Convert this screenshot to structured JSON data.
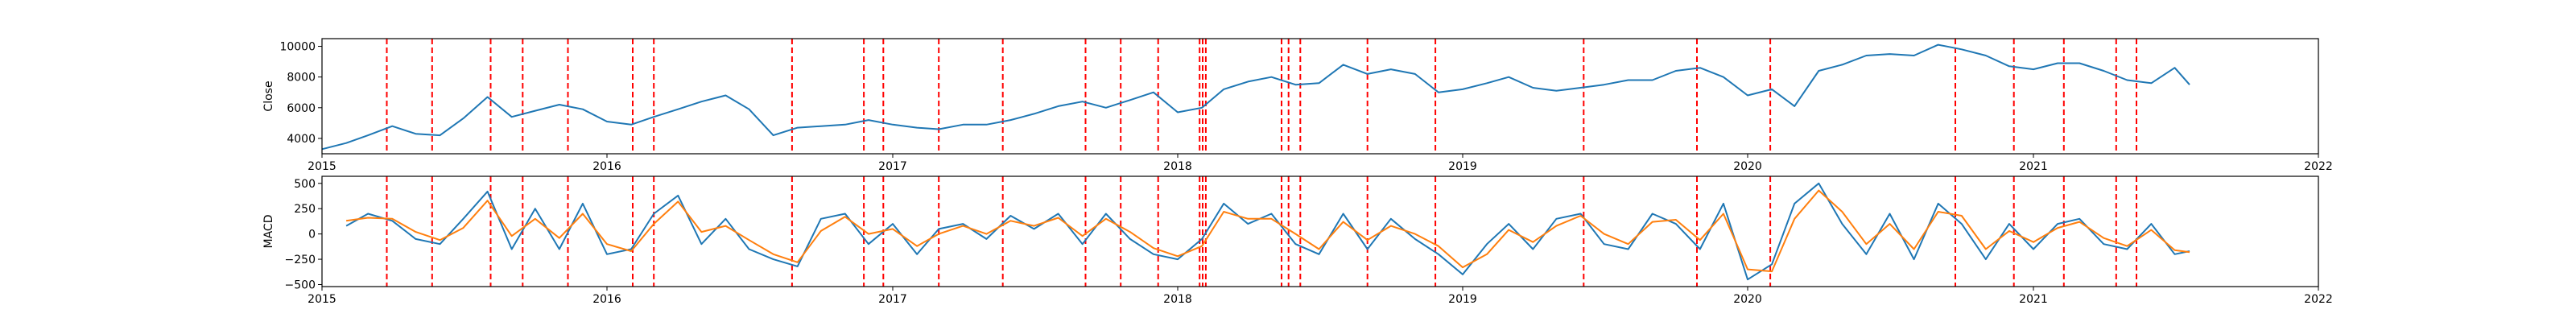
{
  "chart_data": [
    {
      "type": "line",
      "ylabel": "Close",
      "xlim": [
        "2015-01-01",
        "2022-01-01"
      ],
      "ylim": [
        3000,
        10500
      ],
      "x_ticks": [
        "2015",
        "2016",
        "2017",
        "2018",
        "2019",
        "2020",
        "2021",
        "2022"
      ],
      "y_ticks": [
        "4000",
        "6000",
        "8000",
        "10000"
      ],
      "y_tick_values": [
        4000,
        6000,
        8000,
        10000
      ],
      "grid": false,
      "series": [
        {
          "color": "#1f77b4",
          "x": [
            "2015-01-01",
            "2015-02-01",
            "2015-03-01",
            "2015-04-01",
            "2015-05-01",
            "2015-06-01",
            "2015-07-01",
            "2015-08-01",
            "2015-09-01",
            "2015-10-01",
            "2015-11-01",
            "2015-12-01",
            "2016-01-01",
            "2016-02-01",
            "2016-03-01",
            "2016-04-01",
            "2016-05-01",
            "2016-06-01",
            "2016-07-01",
            "2016-08-01",
            "2016-09-01",
            "2016-10-01",
            "2016-11-01",
            "2016-12-01",
            "2017-01-01",
            "2017-02-01",
            "2017-03-01",
            "2017-04-01",
            "2017-05-01",
            "2017-06-01",
            "2017-07-01",
            "2017-08-01",
            "2017-09-01",
            "2017-10-01",
            "2017-11-01",
            "2017-12-01",
            "2018-01-01",
            "2018-02-01",
            "2018-03-01",
            "2018-04-01",
            "2018-05-01",
            "2018-06-01",
            "2018-07-01",
            "2018-08-01",
            "2018-09-01",
            "2018-10-01",
            "2018-11-01",
            "2018-12-01",
            "2019-01-01",
            "2019-02-01",
            "2019-03-01",
            "2019-04-01",
            "2019-05-01",
            "2019-06-01",
            "2019-07-01",
            "2019-08-01",
            "2019-09-01",
            "2019-10-01",
            "2019-11-01",
            "2019-12-01",
            "2020-01-01",
            "2020-02-01",
            "2020-03-01",
            "2020-04-01",
            "2020-05-01",
            "2020-06-01",
            "2020-07-01",
            "2020-08-01",
            "2020-09-01",
            "2020-10-01",
            "2020-11-01",
            "2020-12-01",
            "2021-01-01",
            "2021-02-01",
            "2021-03-01",
            "2021-04-01",
            "2021-05-01",
            "2021-06-01",
            "2021-07-01",
            "2021-07-20"
          ],
          "values": [
            3300,
            3700,
            4200,
            4800,
            4300,
            4200,
            5300,
            6700,
            5400,
            5800,
            6200,
            5900,
            5100,
            4900,
            5400,
            5900,
            6400,
            6800,
            5900,
            4200,
            4700,
            4800,
            4900,
            5200,
            4900,
            4700,
            4600,
            4900,
            4900,
            5200,
            5600,
            6100,
            6400,
            6000,
            6500,
            7000,
            5700,
            6000,
            7200,
            7700,
            8000,
            7500,
            7600,
            8800,
            8200,
            8500,
            8200,
            7000,
            7200,
            7600,
            8000,
            7300,
            7100,
            7300,
            7500,
            7800,
            7800,
            8400,
            8600,
            8000,
            6800,
            7200,
            6100,
            8400,
            8800,
            9400,
            9500,
            9400,
            10100,
            9800,
            9400,
            8700,
            8500,
            8900,
            8900,
            8400,
            7800,
            7600,
            8600,
            7500
          ]
        }
      ]
    },
    {
      "type": "line",
      "ylabel": "MACD",
      "xlim": [
        "2015-01-01",
        "2022-01-01"
      ],
      "ylim": [
        -520,
        570
      ],
      "x_ticks": [
        "2015",
        "2016",
        "2017",
        "2018",
        "2019",
        "2020",
        "2021",
        "2022"
      ],
      "y_ticks": [
        "500",
        "250",
        "0",
        "−250",
        "−500"
      ],
      "y_tick_values": [
        500,
        250,
        0,
        -250,
        -500
      ],
      "grid": false,
      "series": [
        {
          "color": "#1f77b4",
          "x": [
            "2015-02-01",
            "2015-03-01",
            "2015-04-01",
            "2015-05-01",
            "2015-06-01",
            "2015-07-01",
            "2015-08-01",
            "2015-09-01",
            "2015-10-01",
            "2015-11-01",
            "2015-12-01",
            "2016-01-01",
            "2016-02-01",
            "2016-03-01",
            "2016-04-01",
            "2016-05-01",
            "2016-06-01",
            "2016-07-01",
            "2016-08-01",
            "2016-09-01",
            "2016-10-01",
            "2016-11-01",
            "2016-12-01",
            "2017-01-01",
            "2017-02-01",
            "2017-03-01",
            "2017-04-01",
            "2017-05-01",
            "2017-06-01",
            "2017-07-01",
            "2017-08-01",
            "2017-09-01",
            "2017-10-01",
            "2017-11-01",
            "2017-12-01",
            "2018-01-01",
            "2018-02-01",
            "2018-03-01",
            "2018-04-01",
            "2018-05-01",
            "2018-06-01",
            "2018-07-01",
            "2018-08-01",
            "2018-09-01",
            "2018-10-01",
            "2018-11-01",
            "2018-12-01",
            "2019-01-01",
            "2019-02-01",
            "2019-03-01",
            "2019-04-01",
            "2019-05-01",
            "2019-06-01",
            "2019-07-01",
            "2019-08-01",
            "2019-09-01",
            "2019-10-01",
            "2019-11-01",
            "2019-12-01",
            "2020-01-01",
            "2020-02-01",
            "2020-03-01",
            "2020-04-01",
            "2020-05-01",
            "2020-06-01",
            "2020-07-01",
            "2020-08-01",
            "2020-09-01",
            "2020-10-01",
            "2020-11-01",
            "2020-12-01",
            "2021-01-01",
            "2021-02-01",
            "2021-03-01",
            "2021-04-01",
            "2021-05-01",
            "2021-06-01",
            "2021-07-01",
            "2021-07-20"
          ],
          "values": [
            80,
            200,
            130,
            -50,
            -100,
            150,
            420,
            -150,
            250,
            -150,
            300,
            -200,
            -150,
            200,
            380,
            -100,
            150,
            -150,
            -250,
            -320,
            150,
            200,
            -100,
            100,
            -200,
            50,
            100,
            -50,
            180,
            50,
            200,
            -100,
            200,
            -50,
            -200,
            -250,
            -50,
            300,
            100,
            200,
            -100,
            -200,
            200,
            -150,
            150,
            -50,
            -200,
            -400,
            -100,
            100,
            -150,
            150,
            200,
            -100,
            -150,
            200,
            100,
            -150,
            300,
            -450,
            -300,
            300,
            500,
            100,
            -200,
            200,
            -250,
            300,
            100,
            -250,
            100,
            -150,
            100,
            150,
            -100,
            -150,
            100,
            -200,
            -170
          ]
        },
        {
          "color": "#ff7f0e",
          "x": [
            "2015-02-01",
            "2015-03-01",
            "2015-04-01",
            "2015-05-01",
            "2015-06-01",
            "2015-07-01",
            "2015-08-01",
            "2015-09-01",
            "2015-10-01",
            "2015-11-01",
            "2015-12-01",
            "2016-01-01",
            "2016-02-01",
            "2016-03-01",
            "2016-04-01",
            "2016-05-01",
            "2016-06-01",
            "2016-07-01",
            "2016-08-01",
            "2016-09-01",
            "2016-10-01",
            "2016-11-01",
            "2016-12-01",
            "2017-01-01",
            "2017-02-01",
            "2017-03-01",
            "2017-04-01",
            "2017-05-01",
            "2017-06-01",
            "2017-07-01",
            "2017-08-01",
            "2017-09-01",
            "2017-10-01",
            "2017-11-01",
            "2017-12-01",
            "2018-01-01",
            "2018-02-01",
            "2018-03-01",
            "2018-04-01",
            "2018-05-01",
            "2018-06-01",
            "2018-07-01",
            "2018-08-01",
            "2018-09-01",
            "2018-10-01",
            "2018-11-01",
            "2018-12-01",
            "2019-01-01",
            "2019-02-01",
            "2019-03-01",
            "2019-04-01",
            "2019-05-01",
            "2019-06-01",
            "2019-07-01",
            "2019-08-01",
            "2019-09-01",
            "2019-10-01",
            "2019-11-01",
            "2019-12-01",
            "2020-01-01",
            "2020-02-01",
            "2020-03-01",
            "2020-04-01",
            "2020-05-01",
            "2020-06-01",
            "2020-07-01",
            "2020-08-01",
            "2020-09-01",
            "2020-10-01",
            "2020-11-01",
            "2020-12-01",
            "2021-01-01",
            "2021-02-01",
            "2021-03-01",
            "2021-04-01",
            "2021-05-01",
            "2021-06-01",
            "2021-07-01",
            "2021-07-20"
          ],
          "values": [
            130,
            160,
            150,
            20,
            -60,
            60,
            330,
            -20,
            150,
            -40,
            200,
            -100,
            -170,
            100,
            320,
            20,
            80,
            -60,
            -200,
            -280,
            30,
            170,
            0,
            50,
            -120,
            0,
            80,
            0,
            130,
            80,
            160,
            -20,
            150,
            20,
            -140,
            -220,
            -120,
            220,
            150,
            150,
            0,
            -150,
            120,
            -60,
            80,
            0,
            -120,
            -330,
            -200,
            40,
            -80,
            80,
            180,
            0,
            -100,
            120,
            140,
            -60,
            200,
            -350,
            -370,
            150,
            430,
            220,
            -100,
            100,
            -150,
            220,
            180,
            -150,
            30,
            -80,
            60,
            120,
            -40,
            -120,
            40,
            -160,
            -180
          ]
        }
      ]
    }
  ],
  "event_dates": [
    "2015-03-25",
    "2015-05-22",
    "2015-08-05",
    "2015-09-15",
    "2015-11-12",
    "2016-02-03",
    "2016-03-01",
    "2016-08-25",
    "2016-11-25",
    "2016-12-20",
    "2017-03-01",
    "2017-05-22",
    "2017-09-05",
    "2017-10-20",
    "2017-12-07",
    "2018-01-29",
    "2018-02-02",
    "2018-02-06",
    "2018-05-14",
    "2018-05-23",
    "2018-06-07",
    "2018-09-01",
    "2018-11-27",
    "2019-06-05",
    "2019-10-28",
    "2020-01-30",
    "2020-09-23",
    "2020-12-07",
    "2021-02-09",
    "2021-04-17",
    "2021-05-13"
  ],
  "event_style": {
    "color": "#ff0000",
    "dash": "dashed"
  }
}
